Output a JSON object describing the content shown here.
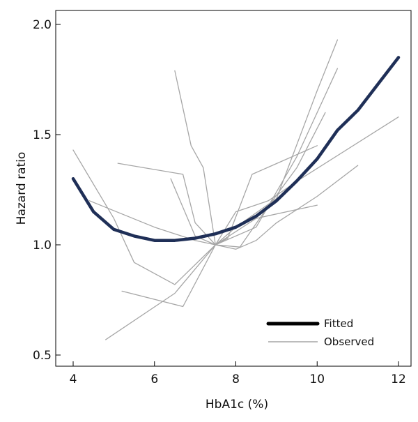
{
  "chart_data": {
    "type": "line",
    "title": "",
    "xlabel": "HbA1c (%)",
    "ylabel": "Hazard ratio",
    "xlim": [
      4,
      12
    ],
    "ylim": [
      0.5,
      2.0
    ],
    "xticks": [
      4,
      6,
      8,
      10,
      12
    ],
    "xtick_labels": [
      "4",
      "6",
      "8",
      "10",
      "12"
    ],
    "yticks": [
      0.5,
      1.0,
      1.5,
      2.0
    ],
    "ytick_labels": [
      "0.5",
      "1.0",
      "1.5",
      "2.0"
    ],
    "grid": false,
    "legend": {
      "position": "bottom-right",
      "entries": [
        "Fitted",
        "Observed"
      ]
    },
    "colors": {
      "fitted": "#1f2f57",
      "observed": "#a6a6a6"
    },
    "series": [
      {
        "name": "Fitted",
        "style": "thick",
        "x": [
          4.0,
          4.5,
          5.0,
          5.5,
          6.0,
          6.5,
          7.0,
          7.5,
          8.0,
          8.5,
          9.0,
          9.5,
          10.0,
          10.5,
          11.0,
          11.5,
          12.0
        ],
        "y": [
          1.3,
          1.15,
          1.07,
          1.04,
          1.02,
          1.02,
          1.03,
          1.05,
          1.08,
          1.13,
          1.2,
          1.29,
          1.39,
          1.52,
          1.61,
          1.73,
          1.85
        ]
      },
      {
        "name": "Observed",
        "style": "thin",
        "x": [
          4.0,
          5.0,
          5.5,
          6.5,
          7.5,
          8.5,
          9.5,
          10.5
        ],
        "y": [
          1.43,
          1.12,
          0.92,
          0.82,
          1.0,
          1.08,
          1.4,
          1.8
        ]
      },
      {
        "name": "Observed",
        "style": "thin",
        "x": [
          4.4,
          6.0,
          7.0,
          7.5,
          8.5,
          10.0
        ],
        "y": [
          1.2,
          1.08,
          1.02,
          1.0,
          1.12,
          1.18
        ]
      },
      {
        "name": "Observed",
        "style": "thin",
        "x": [
          5.1,
          6.7,
          7.0,
          7.5,
          8.0,
          9.0,
          10.0,
          10.5
        ],
        "y": [
          1.37,
          1.32,
          1.1,
          1.0,
          1.08,
          1.21,
          1.7,
          1.93
        ]
      },
      {
        "name": "Observed",
        "style": "thin",
        "x": [
          6.5,
          6.9,
          7.2,
          7.5,
          7.8,
          8.4,
          10.0
        ],
        "y": [
          1.79,
          1.45,
          1.35,
          1.0,
          1.03,
          1.32,
          1.45
        ]
      },
      {
        "name": "Observed",
        "style": "thin",
        "x": [
          6.4,
          7.0,
          7.5,
          8.0,
          8.5,
          9.0,
          10.0,
          11.0
        ],
        "y": [
          1.3,
          1.04,
          1.0,
          0.98,
          1.02,
          1.1,
          1.22,
          1.36
        ]
      },
      {
        "name": "Observed",
        "style": "thin",
        "x": [
          5.2,
          6.7,
          7.5,
          8.1,
          8.7,
          9.5,
          10.2
        ],
        "y": [
          0.79,
          0.72,
          1.0,
          0.99,
          1.15,
          1.35,
          1.6
        ]
      },
      {
        "name": "Observed",
        "style": "thin",
        "x": [
          4.8,
          6.5,
          7.5,
          8.0,
          8.8,
          9.6,
          12.0
        ],
        "y": [
          0.57,
          0.78,
          1.0,
          1.15,
          1.2,
          1.3,
          1.58
        ]
      }
    ]
  }
}
